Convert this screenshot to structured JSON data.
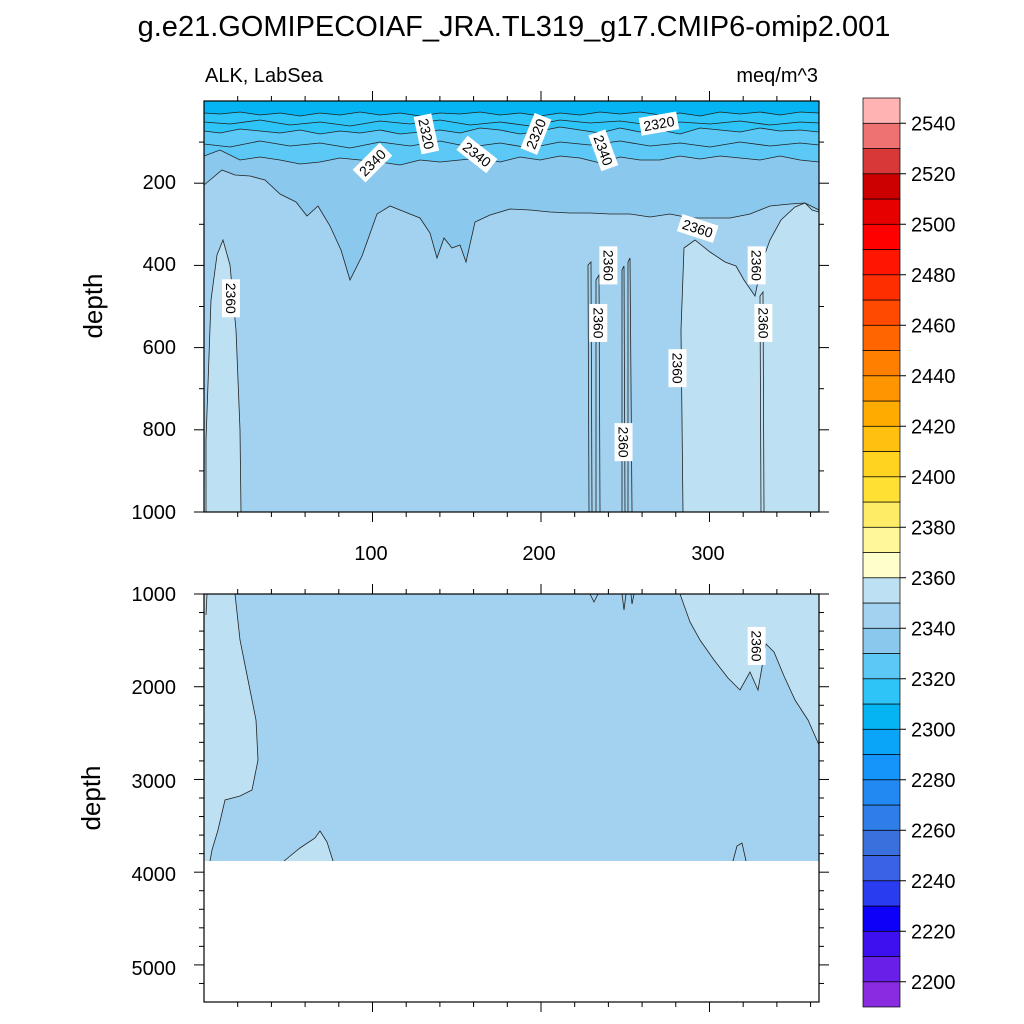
{
  "chart_data": {
    "type": "heatmap",
    "title": "g.e21.GOMIPECOIAF_JRA.TL319_g17.CMIP6-omip2.001",
    "left_label": "ALK, LabSea",
    "right_label": "meq/m^3",
    "xlabel": "",
    "ylabel": "depth",
    "xlim": [
      0,
      365
    ],
    "x_ticks": [
      "100",
      "200",
      "300"
    ],
    "upper_panel": {
      "ylim": [
        0,
        1000
      ],
      "y_ticks": [
        "200",
        "400",
        "600",
        "800",
        "1000"
      ]
    },
    "lower_panel": {
      "ylim": [
        1000,
        5400
      ],
      "y_ticks": [
        "1000",
        "2000",
        "3000",
        "4000",
        "5000"
      ],
      "data_bottom_depth": 3870
    },
    "contour_labels": [
      {
        "text": "2320",
        "x": 132,
        "depth": 80,
        "panel": "upper"
      },
      {
        "text": "2320",
        "x": 197,
        "depth": 80,
        "panel": "upper"
      },
      {
        "text": "2320",
        "x": 270,
        "depth": 55,
        "panel": "upper"
      },
      {
        "text": "2340",
        "x": 100,
        "depth": 150,
        "panel": "upper"
      },
      {
        "text": "2340",
        "x": 162,
        "depth": 130,
        "panel": "upper"
      },
      {
        "text": "2340",
        "x": 237,
        "depth": 120,
        "panel": "upper"
      },
      {
        "text": "2360",
        "x": 293,
        "depth": 310,
        "panel": "upper"
      },
      {
        "text": "2360",
        "x": 16,
        "depth": 480,
        "panel": "upper"
      },
      {
        "text": "2360",
        "x": 240,
        "depth": 400,
        "panel": "upper"
      },
      {
        "text": "2360",
        "x": 328,
        "depth": 400,
        "panel": "upper"
      },
      {
        "text": "2360",
        "x": 234,
        "depth": 540,
        "panel": "upper"
      },
      {
        "text": "2360",
        "x": 332,
        "depth": 540,
        "panel": "upper"
      },
      {
        "text": "2360",
        "x": 281,
        "depth": 650,
        "panel": "upper"
      },
      {
        "text": "2360",
        "x": 249,
        "depth": 830,
        "panel": "upper"
      },
      {
        "text": "2360",
        "x": 328,
        "depth": 1560,
        "panel": "lower"
      }
    ],
    "colorbar": {
      "levels": [
        2200,
        2210,
        2220,
        2230,
        2240,
        2250,
        2260,
        2270,
        2280,
        2290,
        2300,
        2310,
        2320,
        2330,
        2340,
        2350,
        2360,
        2370,
        2380,
        2390,
        2400,
        2410,
        2420,
        2430,
        2440,
        2450,
        2460,
        2470,
        2480,
        2490,
        2500,
        2510,
        2520,
        2530,
        2540,
        2550
      ],
      "tick_labels": [
        "2200",
        "2220",
        "2240",
        "2260",
        "2280",
        "2300",
        "2320",
        "2340",
        "2360",
        "2380",
        "2400",
        "2420",
        "2440",
        "2460",
        "2480",
        "2500",
        "2520",
        "2540"
      ],
      "colors": [
        "#8a2be2",
        "#6a1fe8",
        "#3d10f0",
        "#0d00f8",
        "#2a3cf0",
        "#3a62e6",
        "#3a70de",
        "#2f7de8",
        "#2288f2",
        "#1595fa",
        "#0aa4f8",
        "#05b4f2",
        "#2ec4f8",
        "#5cc8f6",
        "#8ac8ee",
        "#a2d2ef",
        "#bde0f2",
        "#ffffcc",
        "#fff799",
        "#ffec66",
        "#ffe033",
        "#ffd320",
        "#ffc010",
        "#ffab00",
        "#ff9500",
        "#ff7f00",
        "#ff6600",
        "#ff4a00",
        "#ff2e00",
        "#ff1500",
        "#ff0000",
        "#e60000",
        "#cc0000",
        "#d83838",
        "#ee7272",
        "#ffb3b3"
      ]
    }
  }
}
